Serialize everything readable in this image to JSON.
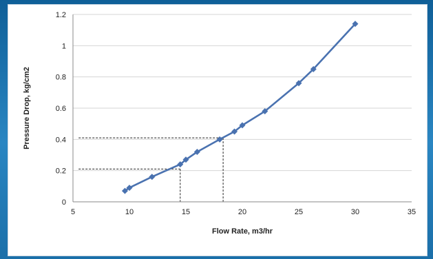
{
  "chart_data": {
    "type": "line",
    "title": "",
    "xlabel": "Flow Rate, m3/hr",
    "ylabel": "Pressure Drop, kg/cm2",
    "xlim": [
      5,
      35
    ],
    "ylim": [
      0,
      1.2
    ],
    "x_ticks": [
      "5",
      "10",
      "15",
      "20",
      "25",
      "30",
      "35"
    ],
    "y_ticks": [
      "0",
      "0.2",
      "0.4",
      "0.6",
      "0.8",
      "1",
      "1.2"
    ],
    "grid": "horizontal",
    "legend": "none",
    "series": [
      {
        "color": "#4a72b0",
        "marker": "diamond",
        "points": [
          {
            "x": 9.6,
            "y": 0.07
          },
          {
            "x": 10.0,
            "y": 0.09
          },
          {
            "x": 12.0,
            "y": 0.16
          },
          {
            "x": 14.5,
            "y": 0.24
          },
          {
            "x": 15.0,
            "y": 0.27
          },
          {
            "x": 16.0,
            "y": 0.32
          },
          {
            "x": 18.0,
            "y": 0.4
          },
          {
            "x": 19.3,
            "y": 0.45
          },
          {
            "x": 20.0,
            "y": 0.49
          },
          {
            "x": 22.0,
            "y": 0.58
          },
          {
            "x": 25.0,
            "y": 0.76
          },
          {
            "x": 26.3,
            "y": 0.85
          },
          {
            "x": 30.0,
            "y": 1.14
          }
        ]
      }
    ],
    "reference_lines": [
      {
        "y": 0.41,
        "x_from": 5.5,
        "x_to": 18.3,
        "x": 18.3
      },
      {
        "y": 0.21,
        "x_from": 5.5,
        "x_to": 14.5,
        "x": 14.5
      }
    ],
    "colors": {
      "series": "#4a72b0",
      "grid": "#d4d4d4",
      "reference": "#222222"
    }
  }
}
